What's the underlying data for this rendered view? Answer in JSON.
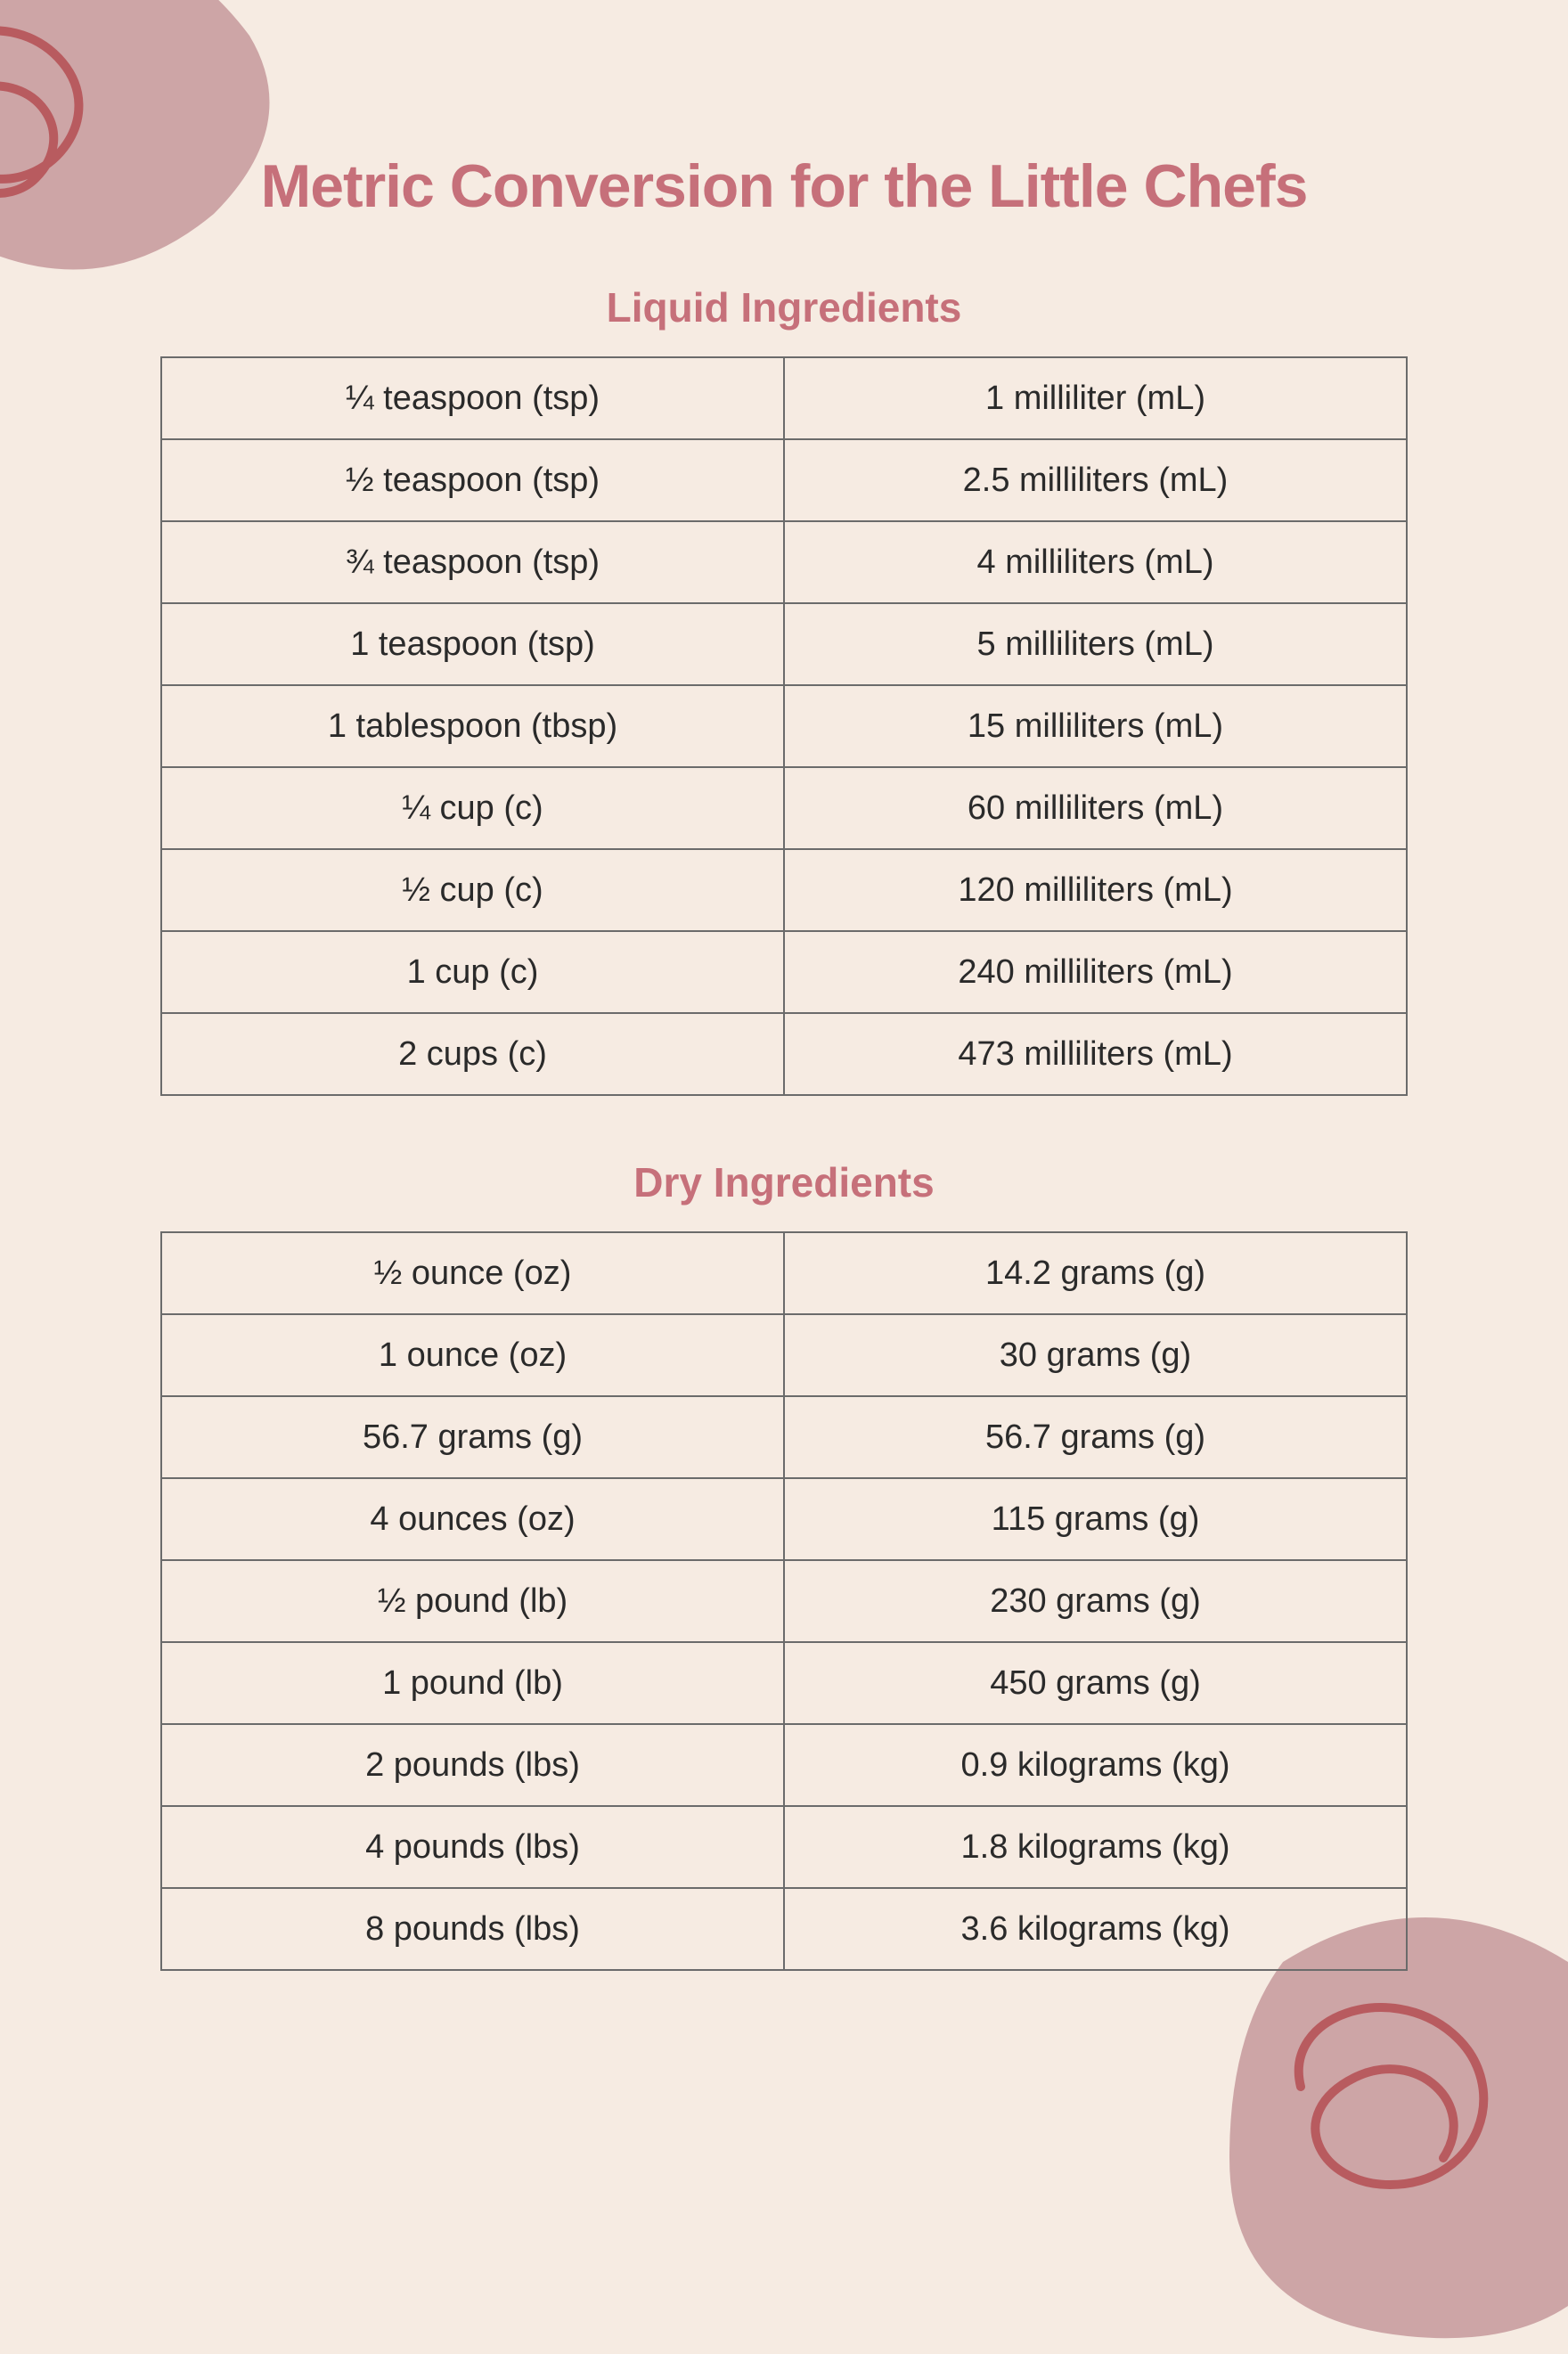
{
  "colors": {
    "background": "#f6ebe2",
    "accent_text": "#c6707a",
    "body_text": "#2a2a2a",
    "border": "#6b6b6b",
    "blob_fill": "#c99da0",
    "squiggle_stroke": "#b85b5f"
  },
  "typography": {
    "title_fontsize": 68,
    "section_title_fontsize": 46,
    "cell_fontsize": 38,
    "title_weight": 800
  },
  "title": "Metric Conversion for the Little Chefs",
  "sections": [
    {
      "heading": "Liquid Ingredients",
      "rows": [
        {
          "imperial": "¼ teaspoon (tsp)",
          "metric": "1 milliliter (mL)"
        },
        {
          "imperial": "½ teaspoon (tsp)",
          "metric": "2.5 milliliters (mL)"
        },
        {
          "imperial": "¾ teaspoon (tsp)",
          "metric": "4 milliliters (mL)"
        },
        {
          "imperial": "1 teaspoon (tsp)",
          "metric": "5 milliliters (mL)"
        },
        {
          "imperial": "1 tablespoon (tbsp)",
          "metric": "15 milliliters (mL)"
        },
        {
          "imperial": "¼ cup (c)",
          "metric": "60 milliliters (mL)"
        },
        {
          "imperial": "½ cup (c)",
          "metric": "120 milliliters (mL)"
        },
        {
          "imperial": "1 cup (c)",
          "metric": "240 milliliters (mL)"
        },
        {
          "imperial": "2 cups (c)",
          "metric": "473 milliliters (mL)"
        }
      ]
    },
    {
      "heading": "Dry Ingredients",
      "rows": [
        {
          "imperial": "½ ounce (oz)",
          "metric": "14.2 grams (g)"
        },
        {
          "imperial": "1 ounce (oz)",
          "metric": "30 grams (g)"
        },
        {
          "imperial": "56.7 grams (g)",
          "metric": "56.7 grams (g)"
        },
        {
          "imperial": "4 ounces (oz)",
          "metric": "115 grams (g)"
        },
        {
          "imperial": "½ pound (lb)",
          "metric": "230 grams (g)"
        },
        {
          "imperial": "1 pound (lb)",
          "metric": "450 grams  (g)"
        },
        {
          "imperial": "2 pounds (lbs)",
          "metric": "0.9 kilograms (kg)"
        },
        {
          "imperial": "4 pounds (lbs)",
          "metric": "1.8 kilograms (kg)"
        },
        {
          "imperial": "8 pounds (lbs)",
          "metric": "3.6 kilograms (kg)"
        }
      ]
    }
  ]
}
